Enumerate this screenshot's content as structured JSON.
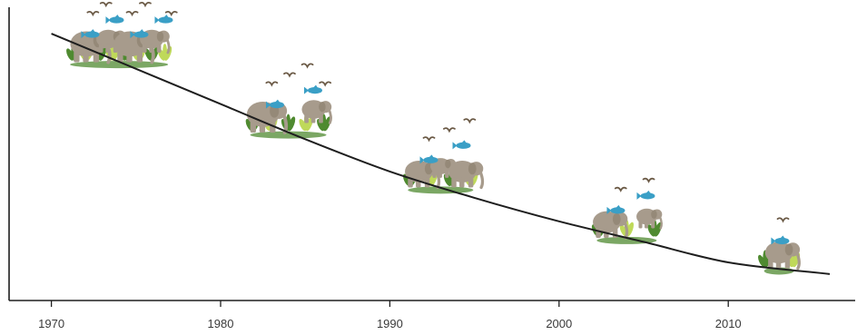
{
  "chart_data": {
    "type": "line",
    "title": "",
    "xlabel": "",
    "ylabel": "",
    "x_ticks": [
      "1970",
      "1980",
      "1990",
      "2000",
      "2010"
    ],
    "xlim": [
      1967.5,
      2017.5
    ],
    "ylim": [
      0,
      100
    ],
    "grid": false,
    "legend": "none",
    "series": [
      {
        "x": [
          1970,
          1975,
          1980,
          1985,
          1990,
          1995,
          2000,
          2005,
          2010,
          2016
        ],
        "y": [
          91,
          79,
          67,
          55,
          44,
          35,
          27,
          20,
          13,
          9
        ]
      }
    ],
    "illustrations": [
      {
        "year": 1974,
        "elephants": 4,
        "fish": 4,
        "birds": 7,
        "plants": "dense"
      },
      {
        "year": 1984,
        "elephants": 2,
        "fish": 2,
        "birds": 4,
        "plants": "medium"
      },
      {
        "year": 1993,
        "elephants": 3,
        "fish": 2,
        "birds": 3,
        "plants": "light"
      },
      {
        "year": 2004,
        "elephants": 2,
        "fish": 2,
        "birds": 2,
        "plants": "sparse"
      },
      {
        "year": 2013,
        "elephants": 1,
        "fish": 1,
        "birds": 1,
        "plants": "minimal"
      }
    ],
    "colors": {
      "line": "#1e1e1e",
      "axis": "#1e1e1e",
      "elephant": "#a79b8c",
      "fish": "#3a9fc6",
      "bird": "#6b5a46",
      "plant_light": "#bfd95a",
      "plant_dark": "#4f8a30"
    }
  }
}
